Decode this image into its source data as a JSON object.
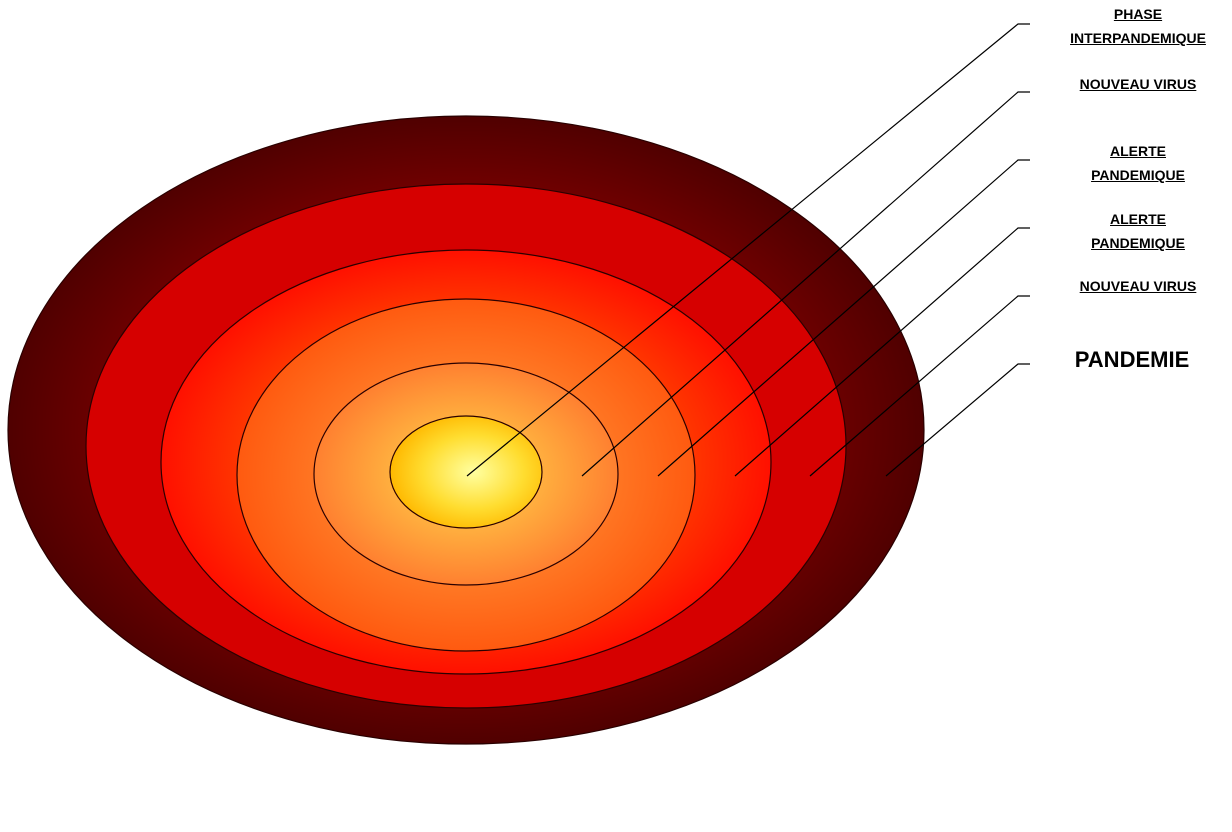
{
  "labels": {
    "phase_interpandemique": {
      "line1": "PHASE",
      "line2": "INTERPANDEMIQUE"
    },
    "nouveau_virus_1": {
      "line1": "NOUVEAU VIRUS"
    },
    "alerte_pandemique_1": {
      "line1": "ALERTE",
      "line2": "PANDEMIQUE"
    },
    "alerte_pandemique_2": {
      "line1": "ALERTE",
      "line2": "PANDEMIQUE"
    },
    "nouveau_virus_2": {
      "line1": "NOUVEAU VIRUS"
    },
    "pandemie": {
      "line1": "PANDEMIE"
    }
  },
  "colors": {
    "ring_outer_dark": "#5a0000",
    "ring_outer_light": "#7a0000",
    "ring_2": "#d40000",
    "ring_3": "#ff1a00",
    "ring_4": "#ff6a10",
    "ring_5": "#ffa030",
    "core_center": "#ffff99",
    "core_edge": "#ffc000",
    "outline": "#3a0000",
    "leader_line": "#000000"
  }
}
